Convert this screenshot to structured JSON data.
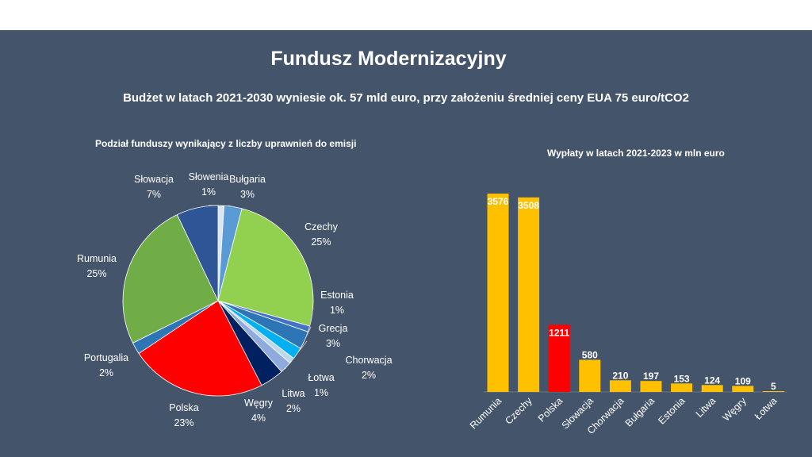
{
  "title": "Fundusz Modernizacyjny",
  "subtitle": "Budżet w latach 2021-2030 wyniesie ok. 57 mld euro, przy założeniu średniej ceny EUA 75 euro/tCO2",
  "chart_data": [
    {
      "type": "pie",
      "title": "Podział funduszy wynikający z liczby uprawnień do emisji",
      "slices": [
        {
          "label": "Słowenia",
          "value": 1,
          "display": "1%",
          "color": "#dce6f2"
        },
        {
          "label": "Bułgaria",
          "value": 3,
          "display": "3%",
          "color": "#5b9bd5"
        },
        {
          "label": "Czechy",
          "value": 25,
          "display": "25%",
          "color": "#92d050"
        },
        {
          "label": "Estonia",
          "value": 1,
          "display": "1%",
          "color": "#4472c4"
        },
        {
          "label": "Grecja",
          "value": 3,
          "display": "3%",
          "color": "#2e75b6"
        },
        {
          "label": "Chorwacja",
          "value": 2,
          "display": "2%",
          "color": "#00b0f0"
        },
        {
          "label": "Łotwa",
          "value": 1,
          "display": "1%",
          "color": "#bdd7ee"
        },
        {
          "label": "Litwa",
          "value": 2,
          "display": "2%",
          "color": "#8faadc"
        },
        {
          "label": "Węgry",
          "value": 4,
          "display": "4%",
          "color": "#002060"
        },
        {
          "label": "Polska",
          "value": 23,
          "display": "23%",
          "color": "#ff0000"
        },
        {
          "label": "Portugalia",
          "value": 2,
          "display": "2%",
          "color": "#2e75b6"
        },
        {
          "label": "Rumunia",
          "value": 25,
          "display": "25%",
          "color": "#70ad47"
        },
        {
          "label": "Słowacja",
          "value": 7,
          "display": "7%",
          "color": "#2f5597"
        }
      ]
    },
    {
      "type": "bar",
      "title": "Wypłaty w latach 2021-2023 w mln euro",
      "categories": [
        "Rumunia",
        "Czechy",
        "Polska",
        "Słowacja",
        "Chorwacja",
        "Bułgaria",
        "Estonia",
        "Litwa",
        "Węgry",
        "Łotwa"
      ],
      "values": [
        3576,
        3508,
        1211,
        580,
        210,
        197,
        153,
        124,
        109,
        5
      ],
      "colors": [
        "#ffc000",
        "#ffc000",
        "#ff0000",
        "#ffc000",
        "#ffc000",
        "#ffc000",
        "#ffc000",
        "#ffc000",
        "#ffc000",
        "#ffc000"
      ],
      "ylim": [
        0,
        3576
      ]
    }
  ]
}
